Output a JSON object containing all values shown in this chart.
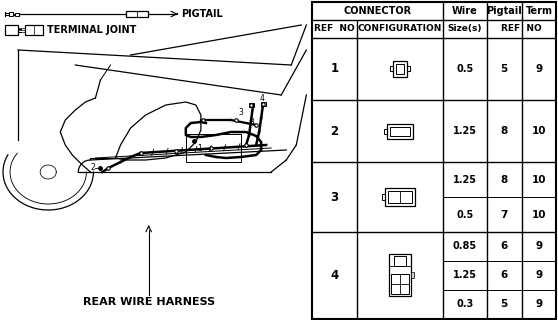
{
  "bg_color": "#ffffff",
  "table_header1": "CONNECTOR",
  "table_col1": "REF  NO",
  "table_col2": "CONFIGURATION",
  "table_col3_header": "Wire",
  "table_col3_sub": "Size(s)",
  "table_col4_header": "Pigtail",
  "table_col4_sub": "REF  NO",
  "table_col5_header": "Term",
  "table_col5_sub": "NO",
  "left_label1": "PIGTAIL",
  "left_label2": "TERMINAL JOINT",
  "bottom_label": "REAR WIRE HARNESS",
  "rows": [
    {
      "ref": "1",
      "sub_rows": [
        {
          "wire": "0.5",
          "pigtail": "5",
          "term": "9"
        }
      ]
    },
    {
      "ref": "2",
      "sub_rows": [
        {
          "wire": "1.25",
          "pigtail": "8",
          "term": "10"
        }
      ]
    },
    {
      "ref": "3",
      "sub_rows": [
        {
          "wire": "1.25",
          "pigtail": "8",
          "term": "10"
        },
        {
          "wire": "0.5",
          "pigtail": "7",
          "term": "10"
        }
      ]
    },
    {
      "ref": "4",
      "sub_rows": [
        {
          "wire": "0.85",
          "pigtail": "6",
          "term": "9"
        },
        {
          "wire": "1.25",
          "pigtail": "6",
          "term": "9"
        },
        {
          "wire": "0.3",
          "pigtail": "5",
          "term": "9"
        }
      ]
    }
  ],
  "font_size": 6.5,
  "table_font_size": 6.5
}
